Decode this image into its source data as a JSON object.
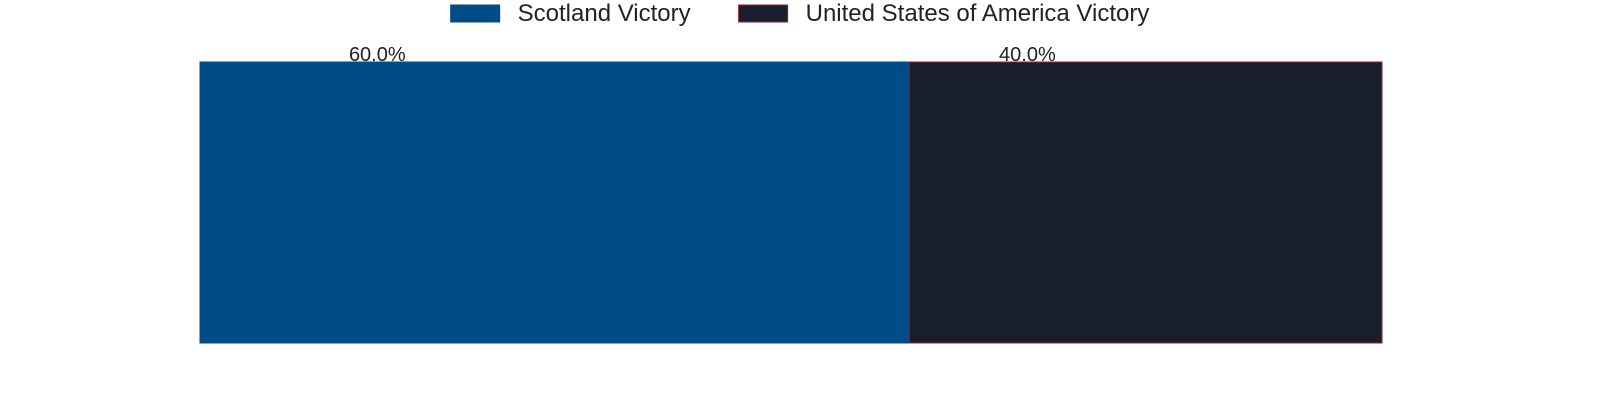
{
  "chart_data": {
    "type": "bar",
    "orientation": "horizontal",
    "stacked": true,
    "title": "",
    "xlabel": "",
    "ylabel": "",
    "xlim": [
      0,
      100
    ],
    "grid": false,
    "legend_position": "top-center",
    "series": [
      {
        "name": "Scotland Victory",
        "value": 60.0,
        "label": "60.0%",
        "color": "#004c86",
        "edge_color": "#004c86"
      },
      {
        "name": "United States of America Victory",
        "value": 40.0,
        "label": "40.0%",
        "color": "#191e2e",
        "edge_color": "#9b1b30"
      }
    ]
  }
}
